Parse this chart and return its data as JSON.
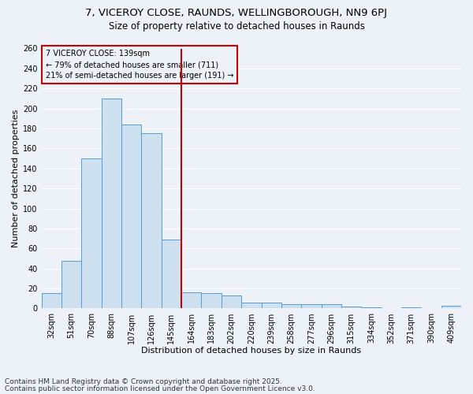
{
  "title1": "7, VICEROY CLOSE, RAUNDS, WELLINGBOROUGH, NN9 6PJ",
  "title2": "Size of property relative to detached houses in Raunds",
  "xlabel": "Distribution of detached houses by size in Raunds",
  "ylabel": "Number of detached properties",
  "categories": [
    "32sqm",
    "51sqm",
    "70sqm",
    "88sqm",
    "107sqm",
    "126sqm",
    "145sqm",
    "164sqm",
    "183sqm",
    "202sqm",
    "220sqm",
    "239sqm",
    "258sqm",
    "277sqm",
    "296sqm",
    "315sqm",
    "334sqm",
    "352sqm",
    "371sqm",
    "390sqm",
    "409sqm"
  ],
  "values": [
    15,
    48,
    150,
    210,
    184,
    175,
    69,
    16,
    15,
    13,
    6,
    6,
    4,
    4,
    4,
    2,
    1,
    0,
    1,
    0,
    3
  ],
  "bar_color": "#cce0f0",
  "bar_edge_color": "#5b9bd5",
  "vline_color": "#cc0000",
  "vline_pos": 6.5,
  "annotation_title": "7 VICEROY CLOSE: 139sqm",
  "annotation_line1": "← 79% of detached houses are smaller (711)",
  "annotation_line2": "21% of semi-detached houses are larger (191) →",
  "annotation_box_color": "#cc0000",
  "ylim": [
    0,
    260
  ],
  "yticks": [
    0,
    20,
    40,
    60,
    80,
    100,
    120,
    140,
    160,
    180,
    200,
    220,
    240,
    260
  ],
  "footer1": "Contains HM Land Registry data © Crown copyright and database right 2025.",
  "footer2": "Contains public sector information licensed under the Open Government Licence v3.0.",
  "bg_color": "#edf2f9",
  "grid_color": "#ffffff",
  "title_fontsize": 9.5,
  "subtitle_fontsize": 8.5,
  "axis_label_fontsize": 8,
  "tick_fontsize": 7,
  "annotation_fontsize": 7,
  "footer_fontsize": 6.5
}
